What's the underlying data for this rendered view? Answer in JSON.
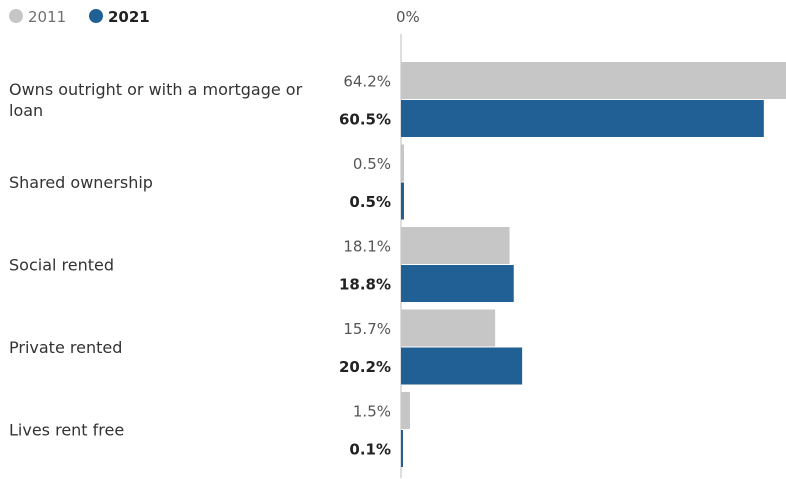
{
  "chart_data": {
    "type": "bar",
    "orientation": "horizontal",
    "categories": [
      [
        "Owns outright or with a mortgage or",
        "loan"
      ],
      [
        "Shared ownership"
      ],
      [
        "Social rented"
      ],
      [
        "Private rented"
      ],
      [
        "Lives rent free"
      ]
    ],
    "series": [
      {
        "name": "2011",
        "color": "#c6c6c6",
        "values": [
          64.2,
          0.5,
          18.1,
          15.7,
          1.5
        ],
        "labels": [
          "64.2%",
          "0.5%",
          "18.1%",
          "15.7%",
          "1.5%"
        ]
      },
      {
        "name": "2021",
        "color": "#206095",
        "values": [
          60.5,
          0.5,
          18.8,
          20.2,
          0.1
        ],
        "labels": [
          "60.5%",
          "0.5%",
          "18.8%",
          "20.2%",
          "0.1%"
        ]
      }
    ],
    "x_tick_label": "0%",
    "xlim": [
      0,
      64.2
    ],
    "legend": "top-left",
    "grid": false
  }
}
